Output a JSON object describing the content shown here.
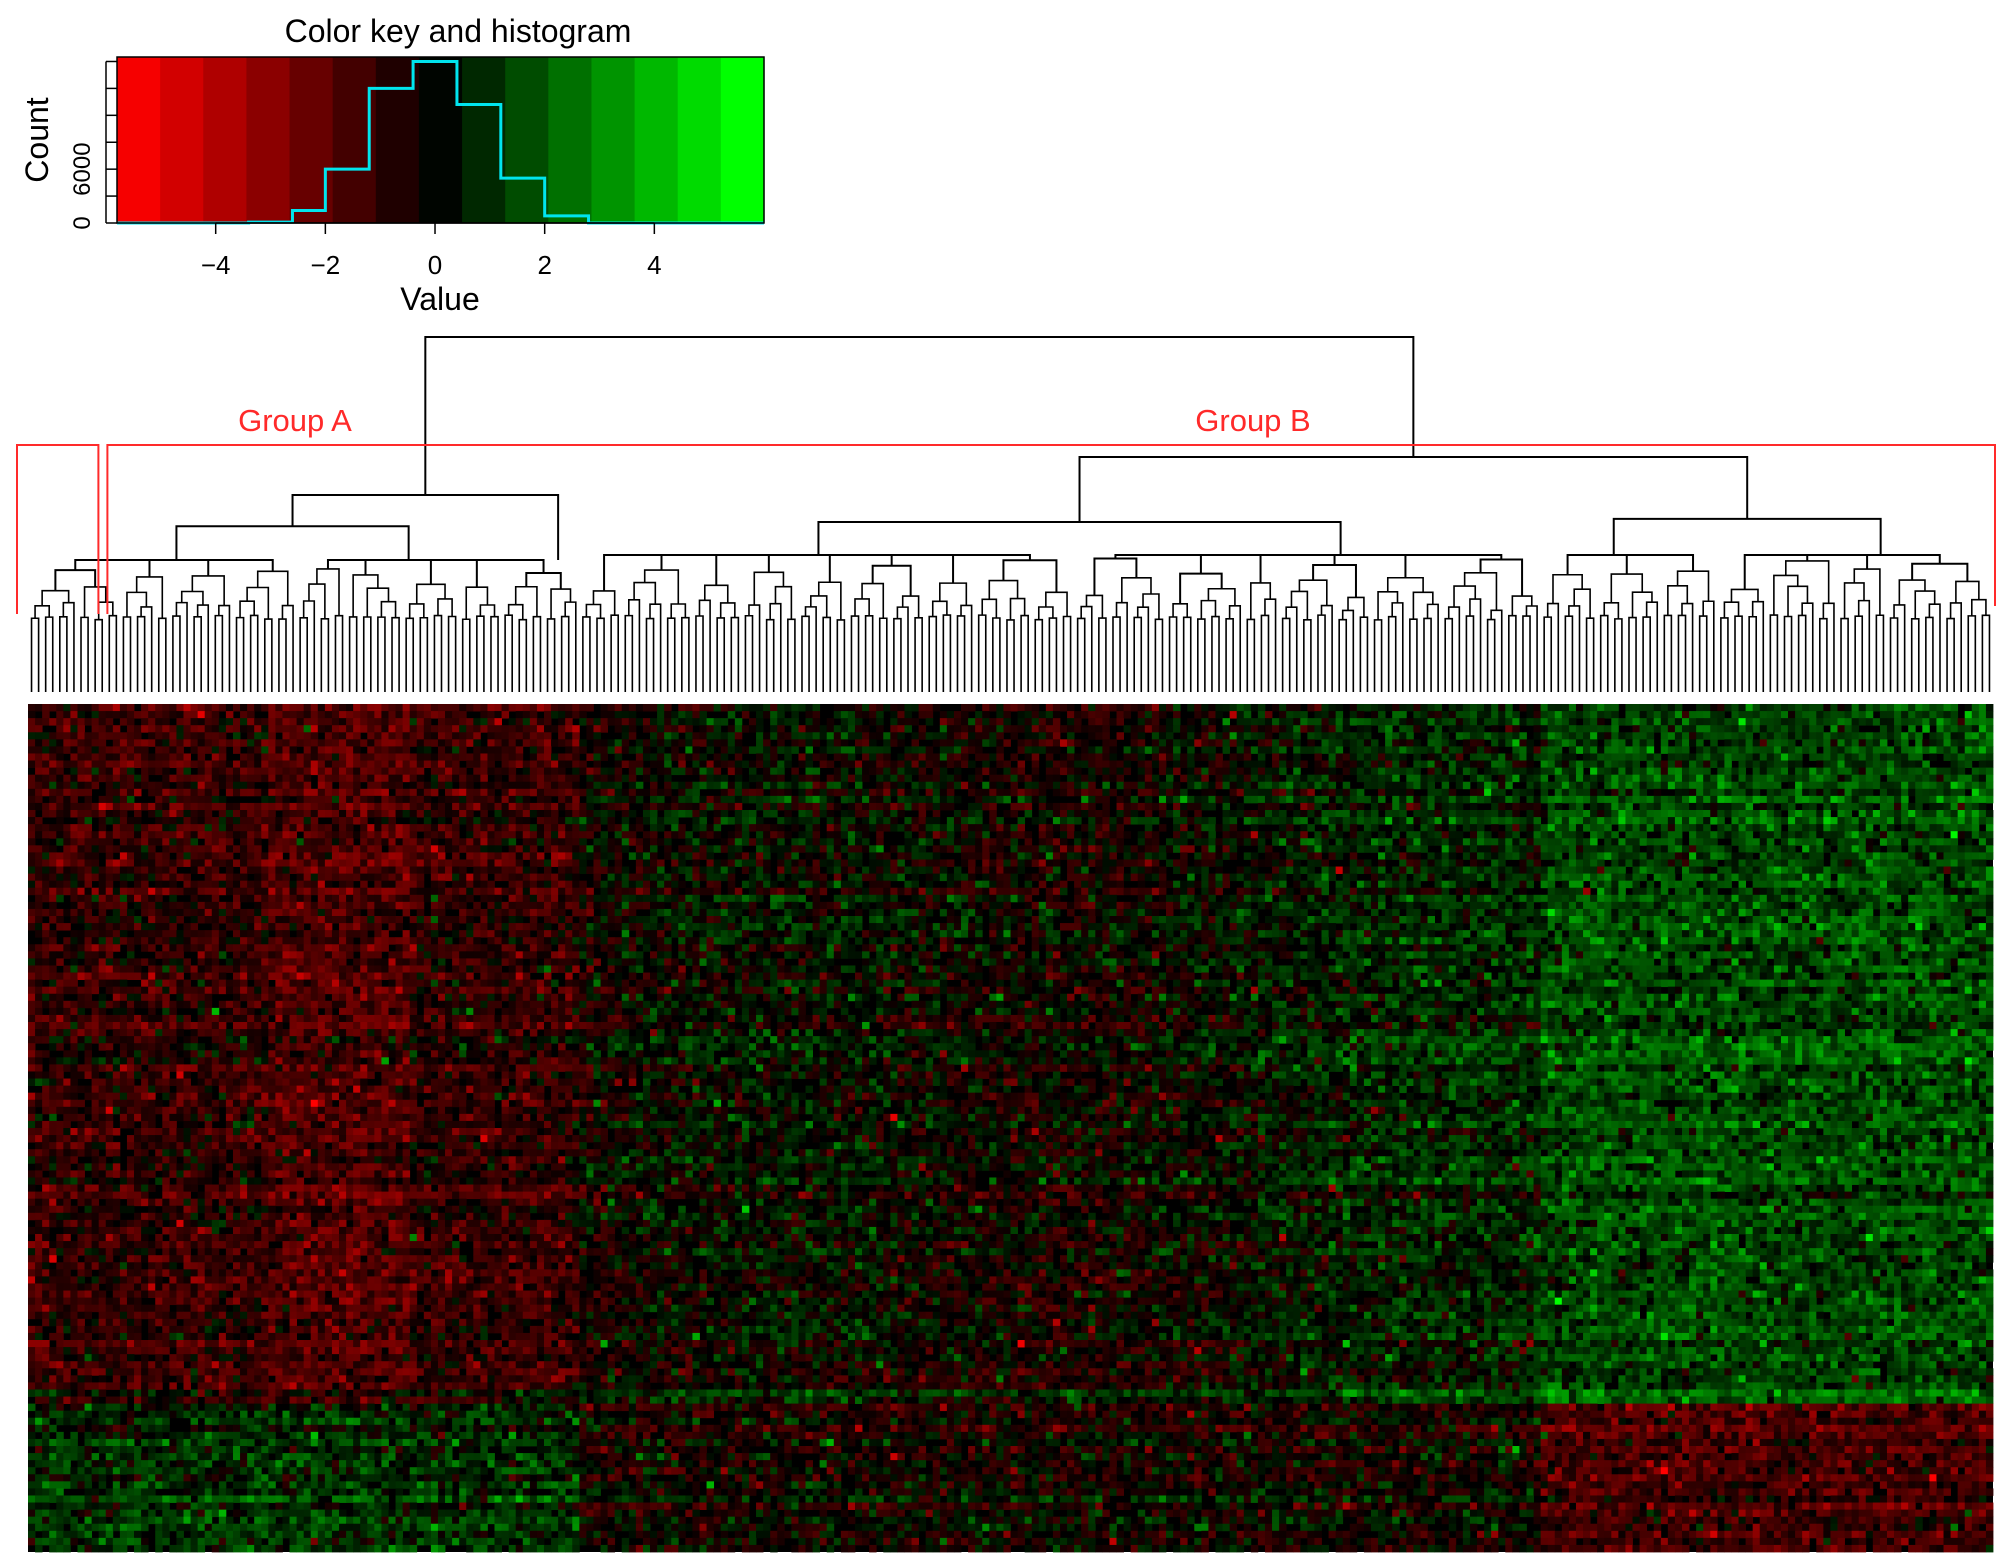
{
  "chart_data": [
    {
      "type": "bar",
      "title": "Color key and histogram",
      "xlabel": "Value",
      "ylabel": "Count",
      "x_ticks": [
        "−4",
        "−2",
        "0",
        "2",
        "4"
      ],
      "x_tick_values": [
        -4,
        -2,
        0,
        2,
        4
      ],
      "y_ticks": [
        "0",
        "6000"
      ],
      "y_tick_values": [
        0,
        6000
      ],
      "xlim": [
        -5.8,
        6.0
      ],
      "ylim": [
        0,
        18500
      ],
      "color_scale": [
        "#ff0000",
        "#000000",
        "#00ff00"
      ],
      "histogram_color": "#00e5ee",
      "histogram": {
        "bin_edges": [
          -5.8,
          -4.6,
          -3.4,
          -2.6,
          -2.0,
          -1.2,
          -0.4,
          0.4,
          1.2,
          2.0,
          2.8,
          6.0
        ],
        "counts": [
          0,
          0,
          100,
          1400,
          6000,
          15000,
          18000,
          13200,
          5000,
          800,
          0
        ]
      }
    },
    {
      "type": "heatmap",
      "groups": [
        {
          "name": "Group A",
          "color": "#ff2a2a",
          "column_fraction": 0.282
        },
        {
          "name": "Group B",
          "color": "#ff2a2a",
          "column_fraction": 0.718
        }
      ],
      "dendrogram_color": "#000000",
      "column_count": 278,
      "row_count": 120,
      "row_blocks": [
        {
          "name": "upper-block",
          "rows": 99
        },
        {
          "name": "lower-block",
          "rows": 21
        }
      ],
      "column_clusters": [
        {
          "columns": 78,
          "mean_upper": -1.0,
          "mean_lower": 0.9
        },
        {
          "columns": 136,
          "mean_upper": 0.1,
          "mean_lower": -0.2
        },
        {
          "columns": 64,
          "mean_upper": 1.5,
          "mean_lower": -1.4
        }
      ]
    }
  ]
}
